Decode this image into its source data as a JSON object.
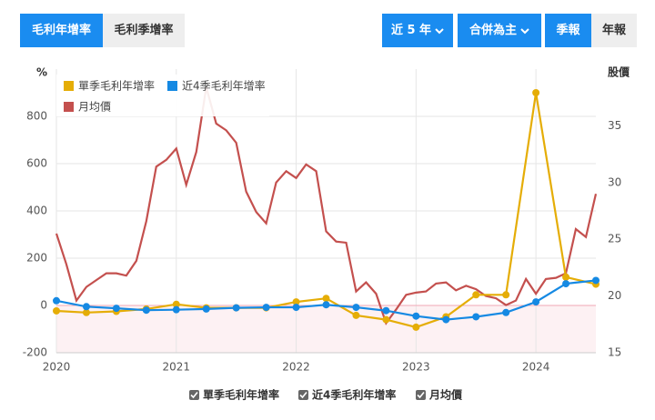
{
  "tabs": [
    "毛利年增率",
    "毛利季增率"
  ],
  "controls": [
    "近 5 年",
    "合併為主",
    "季報",
    "年報"
  ],
  "chart_data": {
    "type": "line",
    "y_label": "%",
    "y2_label": "股價",
    "x": [
      2020,
      2020.25,
      2020.5,
      2020.75,
      2021,
      2021.25,
      2021.5,
      2021.75,
      2022,
      2022.25,
      2022.5,
      2022.75,
      2023,
      2023.25,
      2023.5,
      2023.75,
      2024,
      2024.25,
      2024.5
    ],
    "xlim": [
      2020,
      2024.5
    ],
    "xticks": [
      2020,
      2021,
      2022,
      2023,
      2024
    ],
    "ylim": [
      -200,
      1000
    ],
    "yticks": [
      -200,
      0,
      200,
      400,
      600,
      800
    ],
    "y2lim": [
      15,
      40
    ],
    "y2ticks": [
      15,
      20,
      25,
      30,
      35
    ],
    "grid": true,
    "series": [
      {
        "name": "單季毛利年增率",
        "color": "#e5ad06",
        "values": [
          -23,
          -30,
          -25,
          -15,
          5,
          -10,
          -10,
          -10,
          15,
          30,
          -42,
          -60,
          -92,
          -48,
          45,
          45,
          900,
          120,
          90
        ]
      },
      {
        "name": "近4季毛利年增率",
        "color": "#1589e3",
        "values": [
          20,
          -5,
          -12,
          -20,
          -18,
          -15,
          -10,
          -8,
          -8,
          3,
          -8,
          -22,
          -45,
          -60,
          -48,
          -30,
          15,
          92,
          106
        ]
      },
      {
        "name": "月均價",
        "color": "#c4504e",
        "axis": "y2",
        "x": [
          2020,
          2020.083,
          2020.167,
          2020.25,
          2020.333,
          2020.417,
          2020.5,
          2020.583,
          2020.667,
          2020.75,
          2020.833,
          2020.917,
          2021,
          2021.083,
          2021.167,
          2021.25,
          2021.333,
          2021.417,
          2021.5,
          2021.583,
          2021.667,
          2021.75,
          2021.833,
          2021.917,
          2022,
          2022.083,
          2022.167,
          2022.25,
          2022.333,
          2022.417,
          2022.5,
          2022.583,
          2022.667,
          2022.75,
          2022.833,
          2022.917,
          2023,
          2023.083,
          2023.167,
          2023.25,
          2023.333,
          2023.417,
          2023.5,
          2023.583,
          2023.667,
          2023.75,
          2023.833,
          2023.917,
          2024,
          2024.083,
          2024.167,
          2024.25,
          2024.333,
          2024.417,
          2024.5
        ],
        "values": [
          25.5,
          22.8,
          19.6,
          20.8,
          21.4,
          22.0,
          22.0,
          21.8,
          23.1,
          26.6,
          31.4,
          32.0,
          33.0,
          29.8,
          32.7,
          38.4,
          35.2,
          34.6,
          33.5,
          29.2,
          27.4,
          26.4,
          30.0,
          31.0,
          30.4,
          31.6,
          31.0,
          25.7,
          24.8,
          24.7,
          20.4,
          21.2,
          20.2,
          17.6,
          18.8,
          20.1,
          20.3,
          20.4,
          21.1,
          21.2,
          20.5,
          20.9,
          20.6,
          20.0,
          19.8,
          19.2,
          19.6,
          21.5,
          20.2,
          21.5,
          21.6,
          22.0,
          25.9,
          25.2,
          29.0
        ]
      }
    ]
  }
}
